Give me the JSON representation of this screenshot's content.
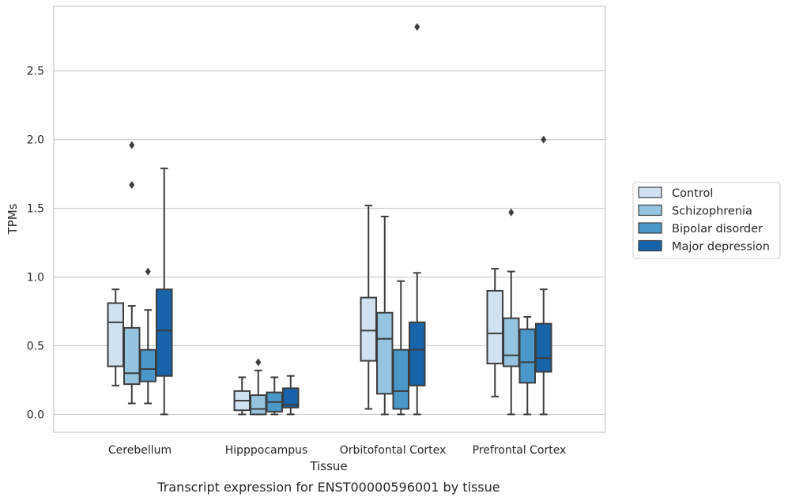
{
  "chart_data": {
    "type": "box",
    "xlabel": "Tissue",
    "ylabel": "TPMs",
    "caption": "Transcript expression for ENST00000596001 by tissue",
    "ylim": [
      -0.13,
      2.97
    ],
    "y_ticks": [
      0.0,
      0.5,
      1.0,
      1.5,
      2.0,
      2.5
    ],
    "y_tick_labels": [
      "0.0",
      "0.5",
      "1.0",
      "1.5",
      "2.0",
      "2.5"
    ],
    "grid": "horizontal",
    "legend_position": "right",
    "categories": [
      "Cerebellum",
      "Hipppocampus",
      "Orbitofontal Cortex",
      "Prefrontal Cortex"
    ],
    "series": [
      {
        "name": "Control",
        "color": "#d0e1f2",
        "boxes": [
          {
            "whislo": 0.21,
            "q1": 0.35,
            "med": 0.67,
            "q3": 0.81,
            "whishi": 0.91,
            "fliers": []
          },
          {
            "whislo": 0.0,
            "q1": 0.03,
            "med": 0.1,
            "q3": 0.17,
            "whishi": 0.27,
            "fliers": []
          },
          {
            "whislo": 0.04,
            "q1": 0.39,
            "med": 0.61,
            "q3": 0.85,
            "whishi": 1.52,
            "fliers": []
          },
          {
            "whislo": 0.13,
            "q1": 0.37,
            "med": 0.59,
            "q3": 0.9,
            "whishi": 1.06,
            "fliers": []
          }
        ]
      },
      {
        "name": "Schizophrenia",
        "color": "#94c4df",
        "boxes": [
          {
            "whislo": 0.08,
            "q1": 0.22,
            "med": 0.3,
            "q3": 0.63,
            "whishi": 0.79,
            "fliers": [
              1.96,
              1.67
            ]
          },
          {
            "whislo": 0.0,
            "q1": 0.0,
            "med": 0.04,
            "q3": 0.14,
            "whishi": 0.32,
            "fliers": [
              0.38
            ]
          },
          {
            "whislo": 0.0,
            "q1": 0.15,
            "med": 0.55,
            "q3": 0.74,
            "whishi": 1.44,
            "fliers": []
          },
          {
            "whislo": 0.0,
            "q1": 0.35,
            "med": 0.43,
            "q3": 0.7,
            "whishi": 1.04,
            "fliers": [
              1.47
            ]
          }
        ]
      },
      {
        "name": "Bipolar disorder",
        "color": "#4a98c9",
        "boxes": [
          {
            "whislo": 0.08,
            "q1": 0.24,
            "med": 0.33,
            "q3": 0.47,
            "whishi": 0.76,
            "fliers": [
              1.04
            ]
          },
          {
            "whislo": 0.0,
            "q1": 0.02,
            "med": 0.09,
            "q3": 0.16,
            "whishi": 0.27,
            "fliers": []
          },
          {
            "whislo": 0.0,
            "q1": 0.04,
            "med": 0.17,
            "q3": 0.47,
            "whishi": 0.97,
            "fliers": []
          },
          {
            "whislo": 0.0,
            "q1": 0.23,
            "med": 0.38,
            "q3": 0.62,
            "whishi": 0.71,
            "fliers": []
          }
        ]
      },
      {
        "name": "Major depression",
        "color": "#1764ab",
        "boxes": [
          {
            "whislo": 0.0,
            "q1": 0.28,
            "med": 0.61,
            "q3": 0.91,
            "whishi": 1.79,
            "fliers": []
          },
          {
            "whislo": 0.0,
            "q1": 0.05,
            "med": 0.07,
            "q3": 0.19,
            "whishi": 0.28,
            "fliers": []
          },
          {
            "whislo": 0.0,
            "q1": 0.21,
            "med": 0.47,
            "q3": 0.67,
            "whishi": 1.03,
            "fliers": [
              2.82
            ]
          },
          {
            "whislo": 0.0,
            "q1": 0.31,
            "med": 0.41,
            "q3": 0.66,
            "whishi": 0.91,
            "fliers": [
              2.0
            ]
          }
        ]
      }
    ]
  }
}
